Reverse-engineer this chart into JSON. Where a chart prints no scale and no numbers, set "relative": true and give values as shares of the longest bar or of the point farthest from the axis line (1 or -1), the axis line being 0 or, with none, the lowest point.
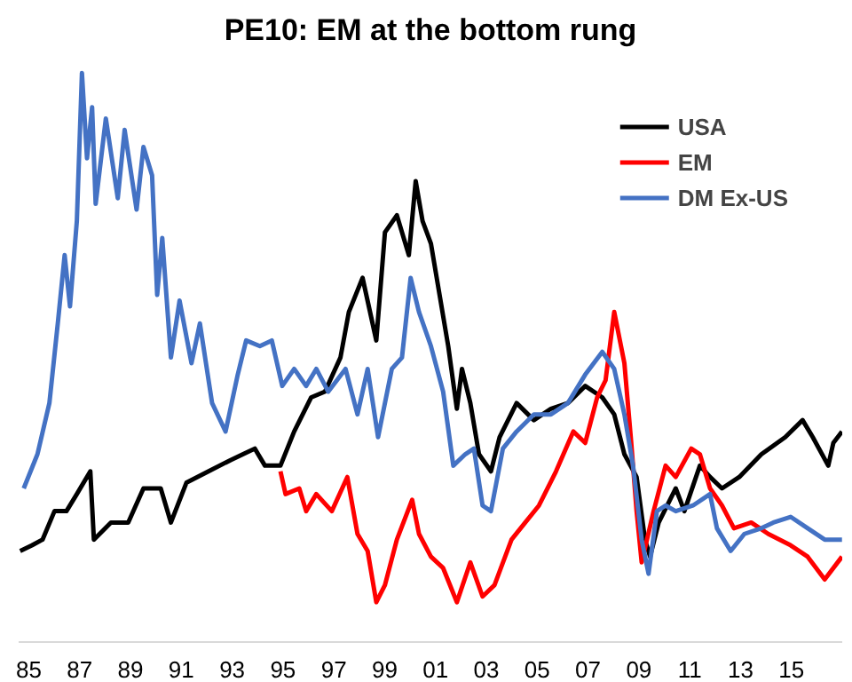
{
  "chart_data": {
    "type": "line",
    "title": "PE10: EM at the bottom rung",
    "relative": true,
    "xlim": [
      1984.6,
      2017.0
    ],
    "xticks": [
      {
        "value": 1985,
        "label": "85"
      },
      {
        "value": 1987,
        "label": "87"
      },
      {
        "value": 1989,
        "label": "89"
      },
      {
        "value": 1991,
        "label": "91"
      },
      {
        "value": 1993,
        "label": "93"
      },
      {
        "value": 1995,
        "label": "95"
      },
      {
        "value": 1997,
        "label": "97"
      },
      {
        "value": 1999,
        "label": "99"
      },
      {
        "value": 2001,
        "label": "01"
      },
      {
        "value": 2003,
        "label": "03"
      },
      {
        "value": 2005,
        "label": "05"
      },
      {
        "value": 2007,
        "label": "07"
      },
      {
        "value": 2009,
        "label": "09"
      },
      {
        "value": 2011,
        "label": "11"
      },
      {
        "value": 2013,
        "label": "13"
      },
      {
        "value": 2015,
        "label": "15"
      }
    ],
    "grid": false,
    "legend": "top right",
    "tick_labels": "x",
    "series": [
      {
        "name": "USA",
        "color": "#000000",
        "x": [
          1984.66,
          1985.13,
          1985.54,
          1986.01,
          1986.48,
          1986.89,
          1987.42,
          1987.56,
          1988.23,
          1988.91,
          1989.51,
          1990.19,
          1990.59,
          1991.2,
          1992.07,
          1992.95,
          1993.89,
          1994.29,
          1994.9,
          1995.44,
          1996.11,
          1996.65,
          1997.26,
          1997.59,
          1998.13,
          1998.67,
          1999.01,
          1999.48,
          1999.95,
          2000.22,
          2000.49,
          2000.82,
          2001.16,
          2001.5,
          2001.84,
          2002.04,
          2002.37,
          2002.71,
          2003.18,
          2003.52,
          2004.19,
          2004.87,
          2005.54,
          2006.21,
          2006.89,
          2007.56,
          2008.03,
          2008.43,
          2008.91,
          2009.24,
          2009.44,
          2009.78,
          2010.45,
          2010.79,
          2011.4,
          2011.8,
          2012.27,
          2012.95,
          2013.82,
          2014.76,
          2015.44,
          2015.84,
          2016.45,
          2016.65,
          2016.99
        ],
        "values": [
          0.16,
          0.17,
          0.18,
          0.23,
          0.23,
          0.26,
          0.3,
          0.18,
          0.21,
          0.21,
          0.27,
          0.27,
          0.21,
          0.28,
          0.3,
          0.32,
          0.34,
          0.31,
          0.31,
          0.37,
          0.43,
          0.44,
          0.5,
          0.58,
          0.64,
          0.53,
          0.72,
          0.75,
          0.68,
          0.81,
          0.74,
          0.7,
          0.61,
          0.52,
          0.41,
          0.48,
          0.42,
          0.33,
          0.3,
          0.36,
          0.42,
          0.39,
          0.41,
          0.42,
          0.45,
          0.43,
          0.4,
          0.33,
          0.29,
          0.18,
          0.15,
          0.21,
          0.27,
          0.23,
          0.31,
          0.29,
          0.27,
          0.29,
          0.33,
          0.36,
          0.39,
          0.36,
          0.31,
          0.35,
          0.37
        ]
      },
      {
        "name": "EM",
        "color": "#ff0000",
        "x": [
          1994.9,
          1995.1,
          1995.64,
          1995.91,
          1996.31,
          1996.92,
          1997.53,
          1997.93,
          1998.33,
          1998.67,
          1999.01,
          1999.48,
          2000.08,
          2000.35,
          2000.82,
          2001.3,
          2001.84,
          2002.37,
          2002.85,
          2003.32,
          2003.99,
          2004.53,
          2005.07,
          2005.74,
          2006.42,
          2006.89,
          2007.36,
          2007.69,
          2008.03,
          2008.43,
          2008.7,
          2008.91,
          2009.11,
          2009.58,
          2010.05,
          2010.45,
          2011.06,
          2011.4,
          2011.8,
          2012.27,
          2012.74,
          2013.42,
          2014.09,
          2014.97,
          2015.64,
          2016.31,
          2016.99
        ],
        "values": [
          0.3,
          0.26,
          0.27,
          0.23,
          0.26,
          0.23,
          0.29,
          0.19,
          0.16,
          0.07,
          0.1,
          0.18,
          0.25,
          0.19,
          0.15,
          0.13,
          0.07,
          0.14,
          0.08,
          0.1,
          0.18,
          0.21,
          0.24,
          0.3,
          0.37,
          0.35,
          0.43,
          0.46,
          0.58,
          0.49,
          0.35,
          0.23,
          0.14,
          0.23,
          0.31,
          0.29,
          0.34,
          0.33,
          0.27,
          0.24,
          0.2,
          0.21,
          0.19,
          0.17,
          0.15,
          0.11,
          0.15
        ]
      },
      {
        "name": "DM Ex-US",
        "color": "#4472c4",
        "x": [
          1984.8,
          1985.34,
          1985.81,
          1986.14,
          1986.41,
          1986.62,
          1986.89,
          1987.09,
          1987.29,
          1987.49,
          1987.63,
          1988.03,
          1988.5,
          1988.77,
          1989.24,
          1989.51,
          1989.85,
          1990.05,
          1990.25,
          1990.59,
          1990.93,
          1991.4,
          1991.73,
          1992.21,
          1992.74,
          1993.22,
          1993.55,
          1994.09,
          1994.56,
          1994.97,
          1995.44,
          1995.91,
          1996.31,
          1996.78,
          1997.46,
          1997.93,
          1998.33,
          1998.74,
          1999.28,
          1999.68,
          2000.02,
          2000.35,
          2000.82,
          2001.3,
          2001.7,
          2002.17,
          2002.51,
          2002.85,
          2003.18,
          2003.65,
          2004.19,
          2004.87,
          2005.54,
          2006.21,
          2006.89,
          2007.56,
          2008.03,
          2008.43,
          2008.77,
          2009.11,
          2009.38,
          2009.71,
          2010.05,
          2010.45,
          2011.13,
          2011.8,
          2012.07,
          2012.61,
          2013.15,
          2013.82,
          2014.29,
          2014.97,
          2015.64,
          2016.31,
          2016.99
        ],
        "values": [
          0.27,
          0.33,
          0.42,
          0.56,
          0.68,
          0.59,
          0.74,
          1,
          0.85,
          0.94,
          0.77,
          0.92,
          0.78,
          0.9,
          0.76,
          0.87,
          0.82,
          0.61,
          0.71,
          0.5,
          0.6,
          0.49,
          0.56,
          0.42,
          0.37,
          0.47,
          0.53,
          0.52,
          0.53,
          0.45,
          0.48,
          0.45,
          0.48,
          0.44,
          0.48,
          0.4,
          0.48,
          0.36,
          0.48,
          0.5,
          0.64,
          0.58,
          0.52,
          0.44,
          0.31,
          0.33,
          0.34,
          0.24,
          0.23,
          0.34,
          0.37,
          0.4,
          0.4,
          0.42,
          0.47,
          0.51,
          0.48,
          0.4,
          0.31,
          0.18,
          0.12,
          0.23,
          0.24,
          0.23,
          0.24,
          0.26,
          0.2,
          0.16,
          0.19,
          0.2,
          0.21,
          0.22,
          0.2,
          0.18,
          0.18
        ]
      }
    ]
  }
}
